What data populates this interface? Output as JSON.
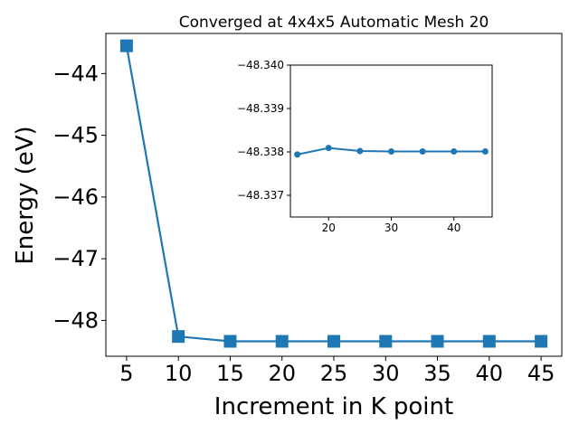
{
  "chart_data": [
    {
      "type": "line",
      "title": "Converged at 4x4x5 Automatic Mesh 20",
      "xlabel": "Increment in K point",
      "ylabel": "Energy (eV)",
      "x": [
        5,
        10,
        15,
        20,
        25,
        30,
        35,
        40,
        45
      ],
      "series": [
        {
          "values": [
            -43.55,
            -48.26,
            -48.338,
            -48.3381,
            -48.338,
            -48.338,
            -48.338,
            -48.338,
            -48.338
          ]
        }
      ],
      "xlim": [
        3.0,
        47.0
      ],
      "ylim": [
        -48.58,
        -43.35
      ],
      "xticks": [
        5,
        10,
        15,
        20,
        25,
        30,
        35,
        40,
        45
      ],
      "xtick_labels": [
        "5",
        "10",
        "15",
        "20",
        "25",
        "30",
        "35",
        "40",
        "45"
      ],
      "yticks": [
        -44,
        -45,
        -46,
        -47,
        -48
      ],
      "ytick_labels": [
        "−44",
        "−45",
        "−46",
        "−47",
        "−48"
      ],
      "marker": "square",
      "color": "#1f77b4",
      "grid": false
    },
    {
      "type": "line",
      "title": "",
      "xlabel": "",
      "ylabel": "",
      "x": [
        15,
        20,
        25,
        30,
        35,
        40,
        45
      ],
      "series": [
        {
          "values": [
            -48.33794,
            -48.33809,
            -48.33802,
            -48.33801,
            -48.33801,
            -48.33801,
            -48.33801
          ]
        }
      ],
      "xlim": [
        13.9,
        46.1
      ],
      "ylim": [
        -48.34,
        -48.3365
      ],
      "y_inverted": true,
      "xticks": [
        20,
        30,
        40
      ],
      "xtick_labels": [
        "20",
        "30",
        "40"
      ],
      "yticks": [
        -48.34,
        -48.339,
        -48.338,
        -48.337
      ],
      "ytick_labels": [
        "−48.340",
        "−48.339",
        "−48.338",
        "−48.337"
      ],
      "marker": "circle",
      "color": "#1f77b4",
      "grid": false
    }
  ]
}
